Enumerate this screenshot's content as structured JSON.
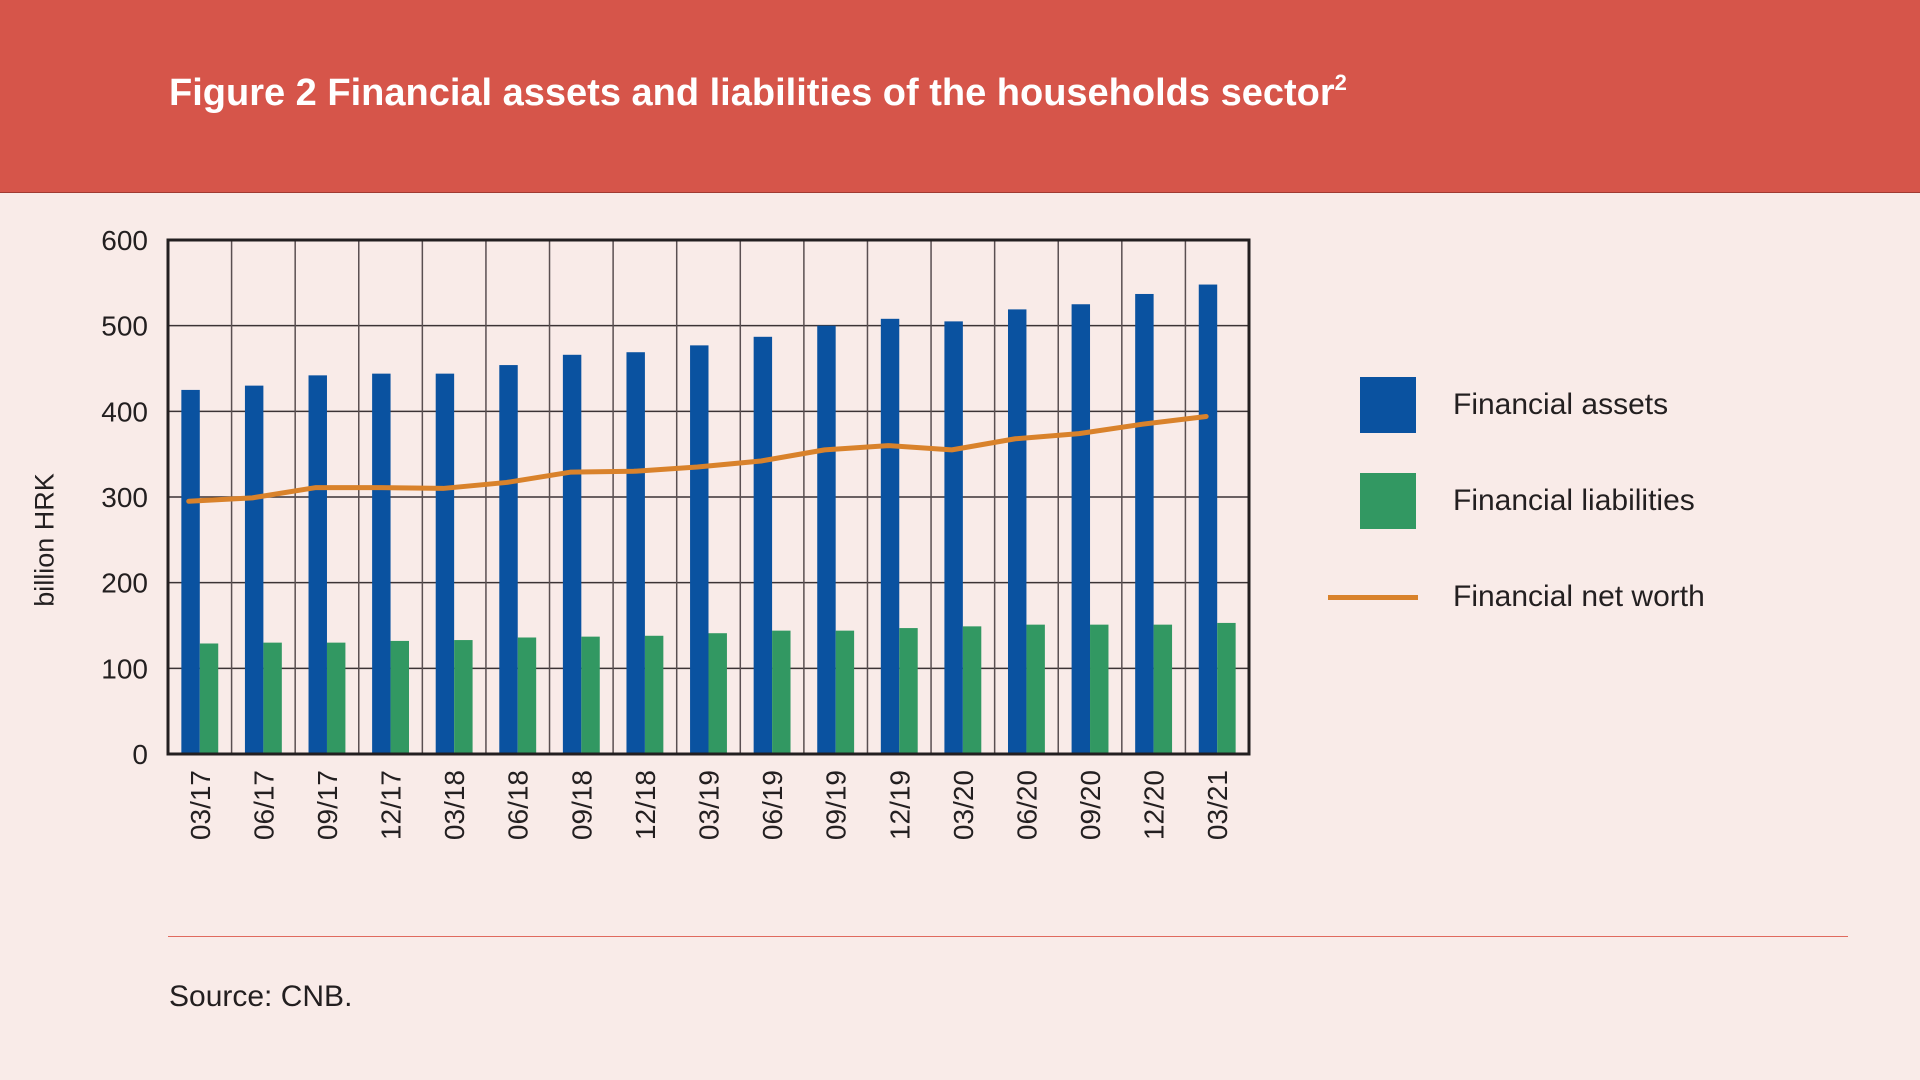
{
  "title": "Figure 2 Financial assets and liabilities of the households sector",
  "title_footnote": "2",
  "source": "Source: CNB.",
  "colors": {
    "assets": "#0a52a0",
    "liabilities": "#329862",
    "net_worth": "#d9822b",
    "header": "#d6554a"
  },
  "chart_data": {
    "type": "bar",
    "title": "Figure 2 Financial assets and liabilities of the households sector",
    "xlabel": "",
    "ylabel": "billion HRK",
    "ylim": [
      0,
      600
    ],
    "yticks": [
      "0",
      "100",
      "200",
      "300",
      "400",
      "500",
      "600"
    ],
    "grid": true,
    "legend_position": "right",
    "categories": [
      "03/17",
      "06/17",
      "09/17",
      "12/17",
      "03/18",
      "06/18",
      "09/18",
      "12/18",
      "03/19",
      "06/19",
      "09/19",
      "12/19",
      "03/20",
      "06/20",
      "09/20",
      "12/20",
      "03/21"
    ],
    "series": [
      {
        "name": "Financial assets",
        "type": "bar",
        "values": [
          425,
          430,
          442,
          444,
          444,
          454,
          466,
          469,
          477,
          487,
          500,
          508,
          505,
          519,
          525,
          537,
          548
        ]
      },
      {
        "name": "Financial liabilities",
        "type": "bar",
        "values": [
          129,
          130,
          130,
          132,
          133,
          136,
          137,
          138,
          141,
          144,
          144,
          147,
          149,
          151,
          151,
          151,
          153
        ]
      },
      {
        "name": "Financial net worth",
        "type": "line",
        "values": [
          295,
          299,
          311,
          311,
          310,
          317,
          329,
          330,
          335,
          342,
          355,
          360,
          355,
          368,
          374,
          385,
          394
        ]
      }
    ]
  }
}
